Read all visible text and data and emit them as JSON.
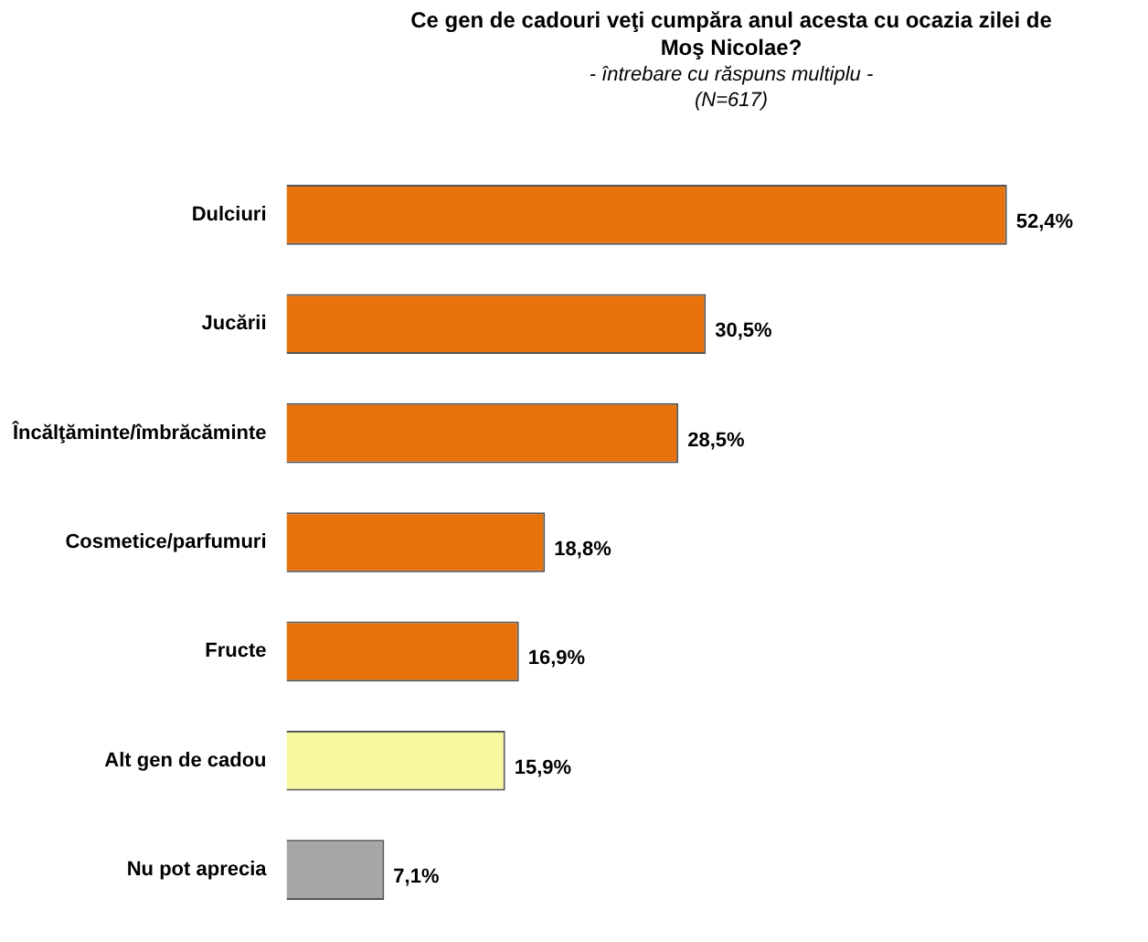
{
  "chart_data": {
    "type": "bar",
    "orientation": "horizontal",
    "title": "Ce gen de cadouri veţi cumpăra anul acesta cu ocazia zilei de Moş Nicolae?",
    "subtitle": "- întrebare cu răspuns multiplu -\n(N=617)",
    "categories": [
      "Dulciuri",
      "Jucării",
      "Încălţăminte/îmbrăcăminte",
      "Cosmetice/parfumuri",
      "Fructe",
      "Alt gen de cadou",
      "Nu pot aprecia"
    ],
    "values": [
      52.4,
      30.5,
      28.5,
      18.8,
      16.9,
      15.9,
      7.1
    ],
    "colors": [
      "#e8720c",
      "#e8720c",
      "#e8720c",
      "#e8720c",
      "#e8720c",
      "#f7f7a0",
      "#a6a6a6"
    ],
    "value_labels": [
      "52,4%",
      "30,5%",
      "28,5%",
      "18,8%",
      "16,9%",
      "15,9%",
      "7,1%"
    ],
    "legend": false
  }
}
